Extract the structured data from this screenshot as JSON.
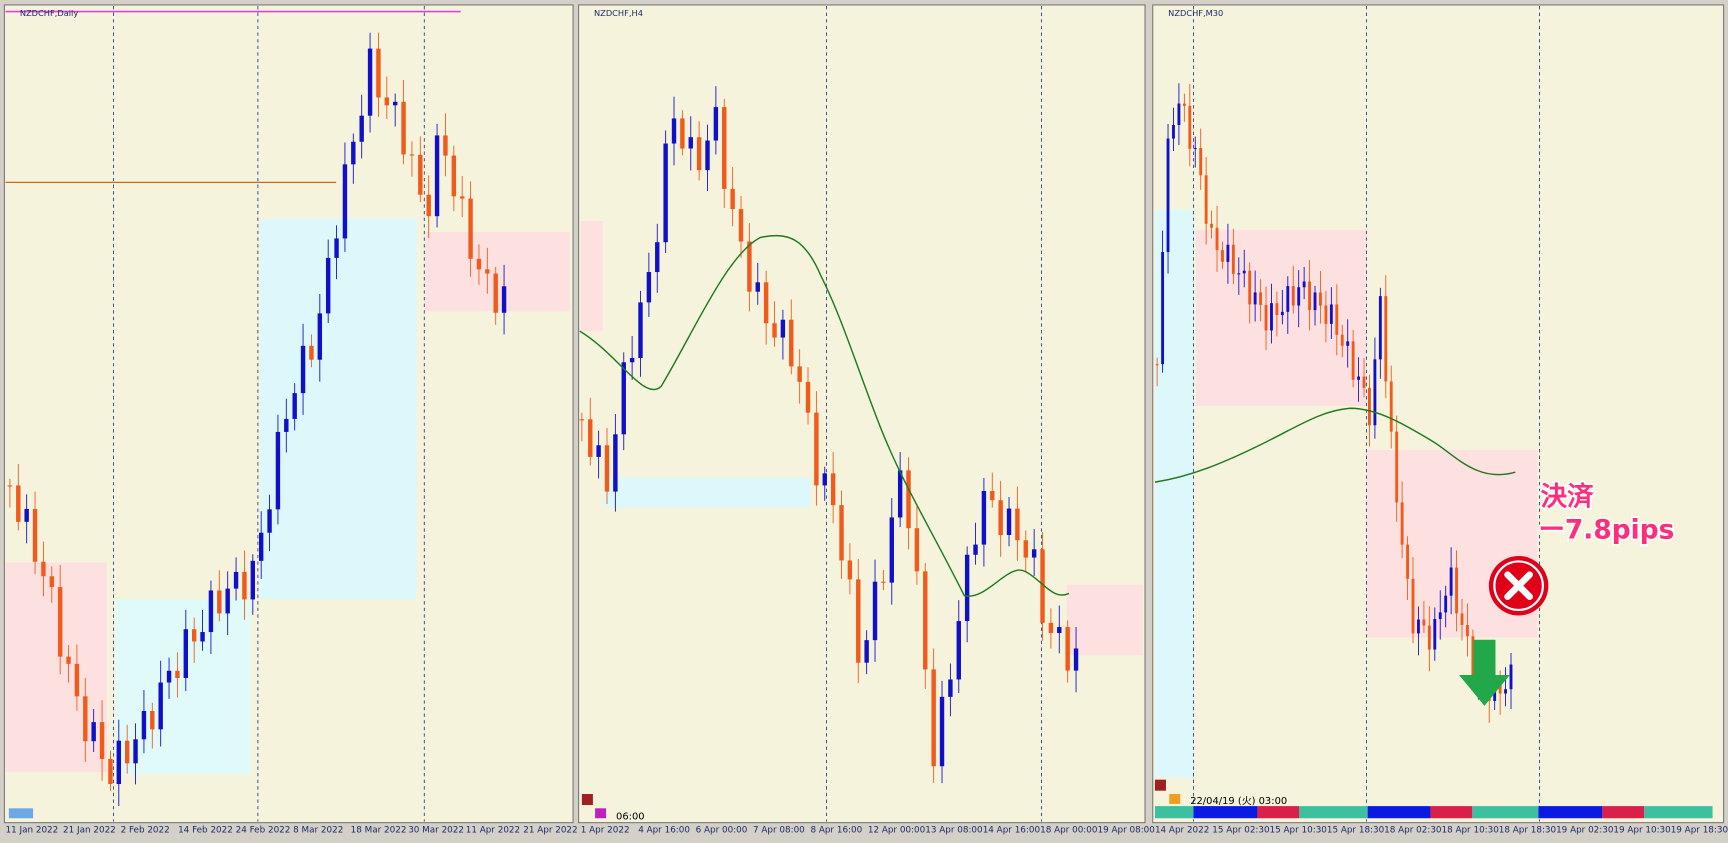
{
  "panels": [
    {
      "title": "NZDCHF,Daily",
      "x_labels": [
        "11 Jan 2022",
        "21 Jan 2022",
        "2 Feb 2022",
        "14 Feb 2022",
        "24 Feb 2022",
        "8 Mar 2022",
        "18 Mar 2022",
        "30 Mar 2022",
        "11 Apr 2022",
        "21 Apr 2022"
      ]
    },
    {
      "title": "NZDCHF,H4",
      "x_labels": [
        "1 Apr 2022",
        "4 Apr 16:00",
        "6 Apr 00:00",
        "7 Apr 08:00",
        "8 Apr 16:00",
        "12 Apr 00:00",
        "13 Apr 08:00",
        "14 Apr 16:00",
        "18 Apr 00:00",
        "19 Apr 08:00"
      ],
      "time_label": "06:00"
    },
    {
      "title": "NZDCHF,M30",
      "x_labels": [
        "14 Apr 2022",
        "15 Apr 02:30",
        "15 Apr 10:30",
        "15 Apr 18:30",
        "18 Apr 02:30",
        "18 Apr 10:30",
        "18 Apr 18:30",
        "19 Apr 02:30",
        "19 Apr 10:30",
        "19 Apr 18:30"
      ],
      "crosshair_label": "22/04/19 (火) 03:00"
    }
  ],
  "annotation": {
    "label": "決済",
    "result": "ー7.8pips"
  }
}
